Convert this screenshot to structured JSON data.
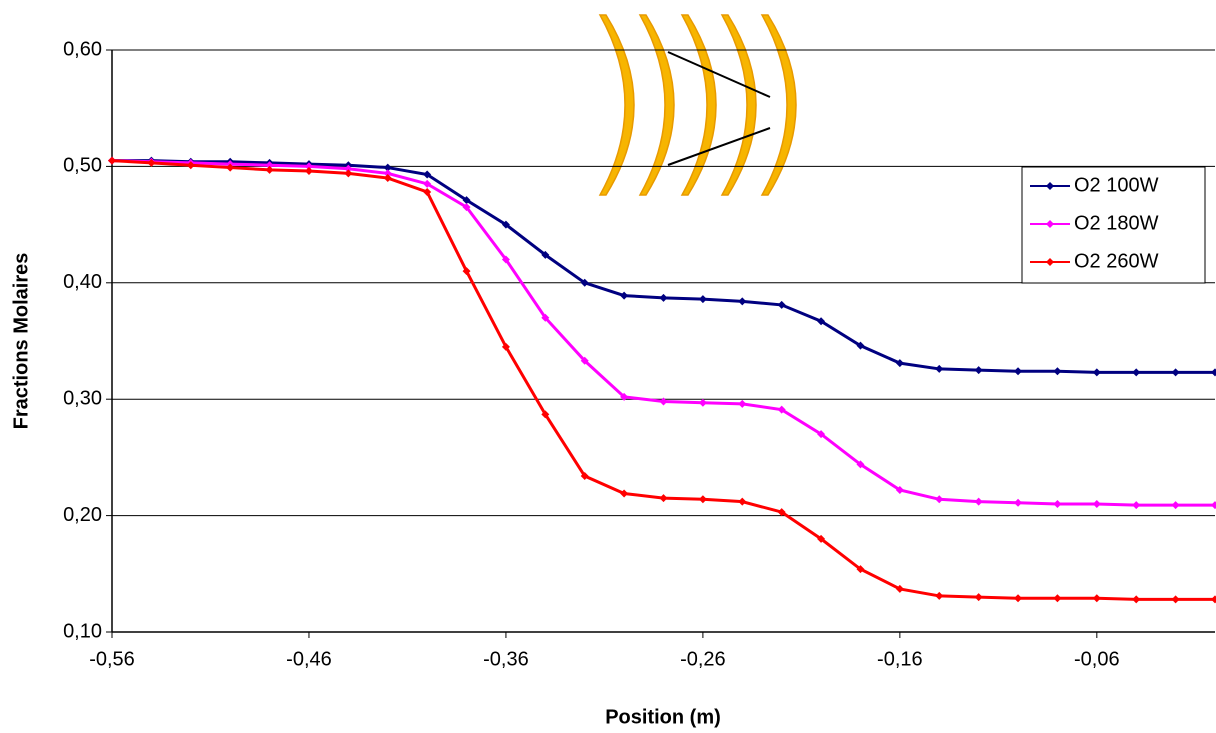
{
  "chart_data": {
    "type": "line",
    "x_label": "Position (m)",
    "y_label": "Fractions Molaires",
    "x": [
      -0.56,
      -0.54,
      -0.52,
      -0.5,
      -0.48,
      -0.46,
      -0.44,
      -0.42,
      -0.4,
      -0.38,
      -0.36,
      -0.34,
      -0.32,
      -0.3,
      -0.28,
      -0.26,
      -0.24,
      -0.22,
      -0.2,
      -0.18,
      -0.16,
      -0.14,
      -0.12,
      -0.1,
      -0.08,
      -0.06,
      -0.04,
      -0.02,
      0.0
    ],
    "series": [
      {
        "name": "O2 100W",
        "color": "#000080",
        "values": [
          0.505,
          0.505,
          0.504,
          0.504,
          0.503,
          0.502,
          0.501,
          0.499,
          0.493,
          0.471,
          0.45,
          0.424,
          0.4,
          0.389,
          0.387,
          0.386,
          0.384,
          0.381,
          0.367,
          0.346,
          0.331,
          0.326,
          0.325,
          0.324,
          0.324,
          0.323,
          0.323,
          0.323,
          0.323
        ]
      },
      {
        "name": "O2 180W",
        "color": "#ff00ff",
        "values": [
          0.505,
          0.504,
          0.503,
          0.502,
          0.501,
          0.5,
          0.498,
          0.494,
          0.485,
          0.465,
          0.42,
          0.37,
          0.333,
          0.302,
          0.298,
          0.297,
          0.296,
          0.291,
          0.27,
          0.244,
          0.222,
          0.214,
          0.212,
          0.211,
          0.21,
          0.21,
          0.209,
          0.209,
          0.209
        ]
      },
      {
        "name": "O2 260W",
        "color": "#ff0000",
        "values": [
          0.505,
          0.503,
          0.501,
          0.499,
          0.497,
          0.496,
          0.494,
          0.49,
          0.478,
          0.41,
          0.345,
          0.287,
          0.234,
          0.219,
          0.215,
          0.214,
          0.212,
          0.203,
          0.18,
          0.154,
          0.137,
          0.131,
          0.13,
          0.129,
          0.129,
          0.129,
          0.128,
          0.128,
          0.128
        ]
      }
    ],
    "xlim": [
      -0.56,
      0.0
    ],
    "ylim": [
      0.1,
      0.6
    ],
    "xticks": [
      {
        "value": -0.56,
        "label": "-0,56"
      },
      {
        "value": -0.46,
        "label": "-0,46"
      },
      {
        "value": -0.36,
        "label": "-0,36"
      },
      {
        "value": -0.26,
        "label": "-0,26"
      },
      {
        "value": -0.16,
        "label": "-0,16"
      },
      {
        "value": -0.06,
        "label": "-0,06"
      }
    ],
    "yticks": [
      {
        "value": 0.1,
        "label": "0,10"
      },
      {
        "value": 0.2,
        "label": "0,20"
      },
      {
        "value": 0.3,
        "label": "0,30"
      },
      {
        "value": 0.4,
        "label": "0,40"
      },
      {
        "value": 0.5,
        "label": "0,50"
      },
      {
        "value": 0.6,
        "label": "0,60"
      }
    ],
    "grid": true,
    "legend": "right"
  }
}
